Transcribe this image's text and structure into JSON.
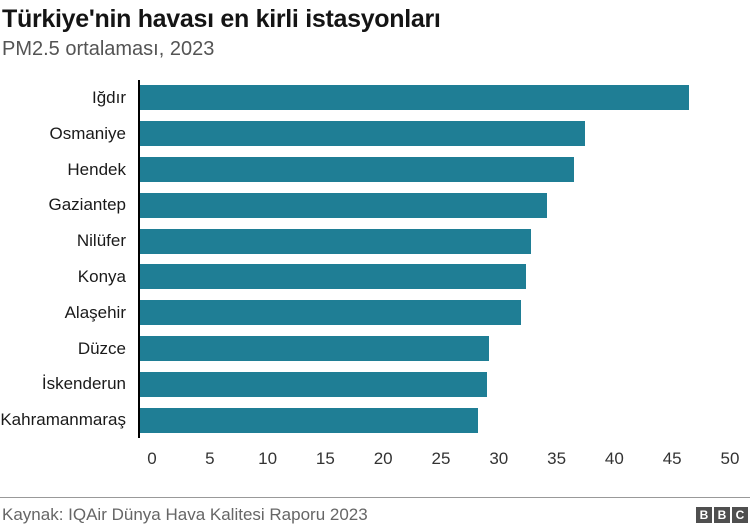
{
  "header": {
    "title": "Türkiye'nin havası en kirli istasyonları",
    "subtitle": "PM2.5 ortalaması, 2023"
  },
  "chart_data": {
    "type": "bar",
    "orientation": "horizontal",
    "title": "Türkiye'nin havası en kirli istasyonları",
    "subtitle": "PM2.5 ortalaması, 2023",
    "categories": [
      "Iğdır",
      "Osmaniye",
      "Hendek",
      "Gaziantep",
      "Nilüfer",
      "Konya",
      "Alaşehir",
      "Düzce",
      "İskenderun",
      "Kahramanmaraş"
    ],
    "values": [
      47.5,
      38.5,
      37.5,
      35.2,
      33.8,
      33.4,
      33.0,
      30.2,
      30.0,
      29.2
    ],
    "xlabel": "",
    "ylabel": "",
    "xlim": [
      0,
      50
    ],
    "xticks": [
      0,
      5,
      10,
      15,
      20,
      25,
      30,
      35,
      40,
      45,
      50
    ],
    "grid": false,
    "legend": "none",
    "bar_color": "#1f7e95",
    "axis_color": "#000000"
  },
  "footer": {
    "source": "Kaynak: IQAir Dünya Hava Kalitesi Raporu 2023",
    "logo_letters": [
      "B",
      "B",
      "C"
    ]
  },
  "colors": {
    "bar": "#1f7e95",
    "title_text": "#141414",
    "subtitle_text": "#545454",
    "tick_text": "#333333",
    "footer_text": "#666666",
    "divider": "#999999",
    "logo_background": "#4f4f4f",
    "background": "#ffffff"
  }
}
